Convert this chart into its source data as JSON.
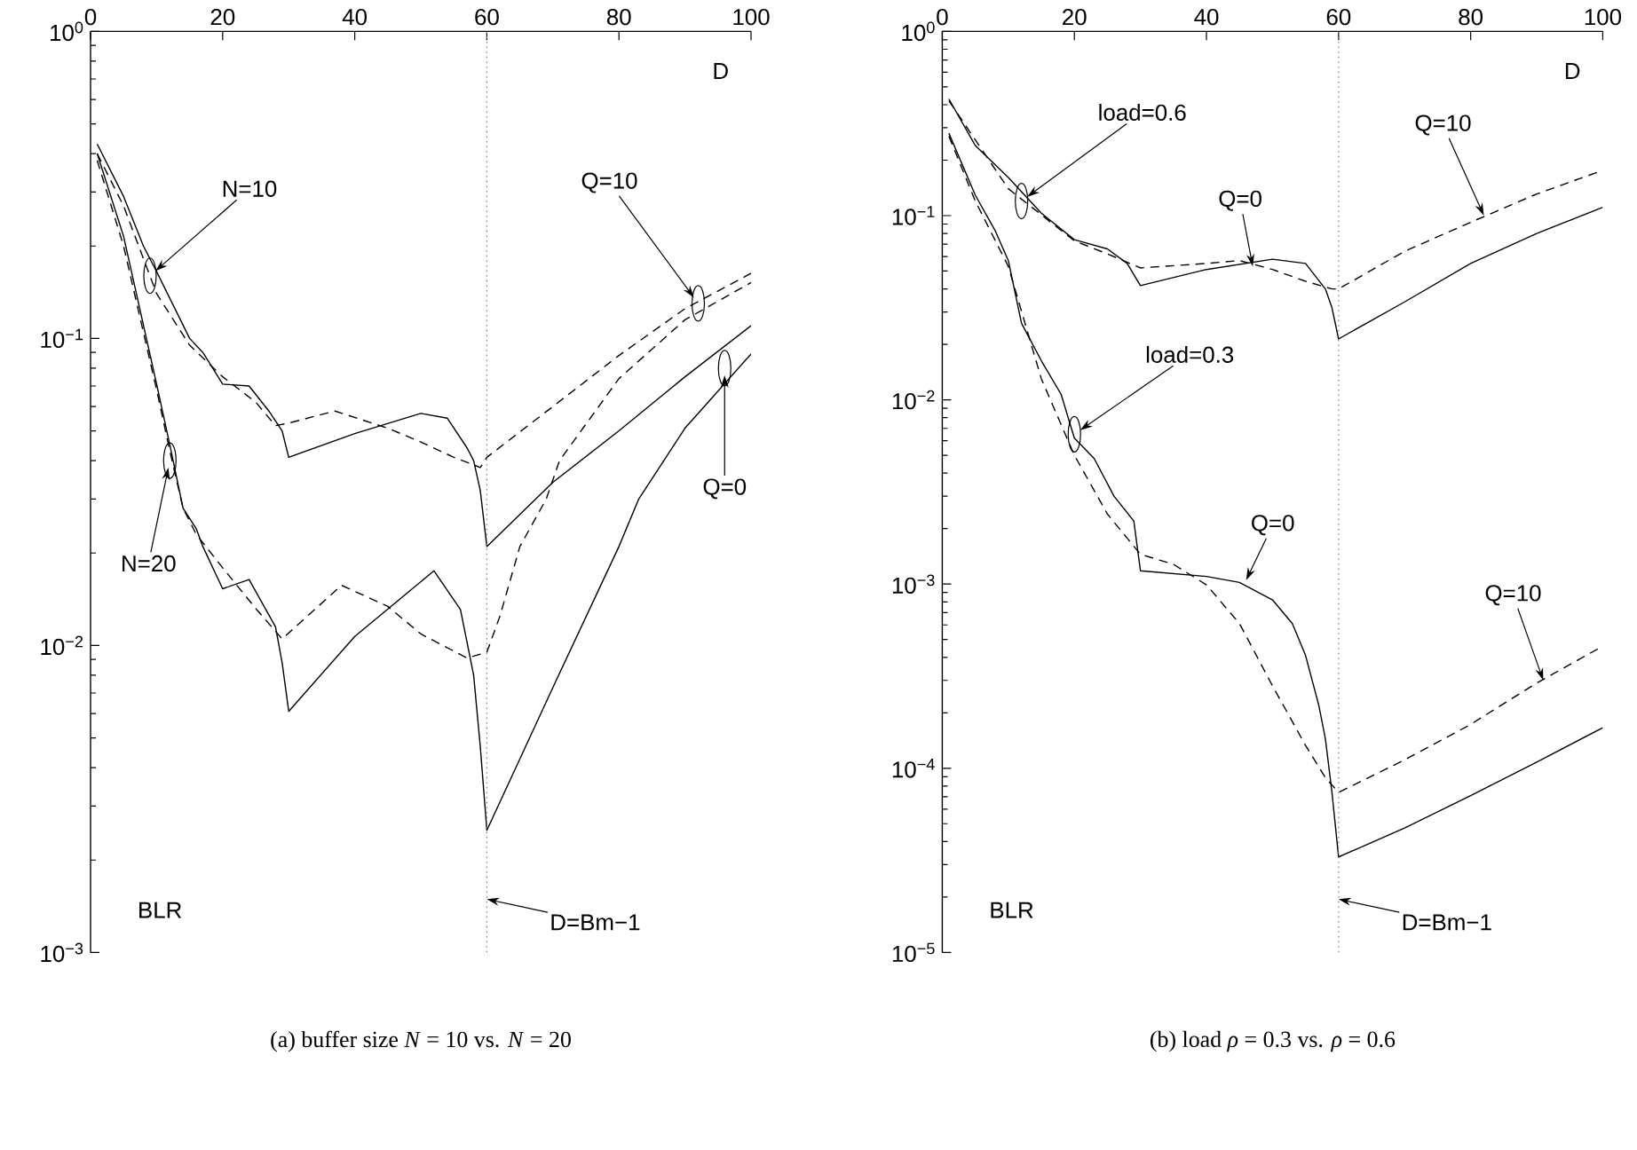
{
  "chart_data": [
    {
      "type": "line",
      "title": "(a) buffer size *N* = 10 vs. *N* = 20",
      "xlabel": "D",
      "ylabel": "BLR",
      "log": "y",
      "xlim": [
        0,
        100
      ],
      "xticks": [
        0,
        20,
        40,
        60,
        80,
        100
      ],
      "ylim": [
        0.001,
        1
      ],
      "yticks": [
        {
          "value": 1,
          "label": "10$^{0}$"
        },
        {
          "value": 0.1,
          "label": "10$^{−1}$"
        },
        {
          "value": 0.01,
          "label": "10$^{−2}$"
        },
        {
          "value": 0.001,
          "label": "10$^{−3}$"
        }
      ],
      "ref_lines": [
        {
          "axis": "x",
          "value": 60,
          "label": "D=Bm−1",
          "color": "#808080",
          "line_style": "dotted"
        }
      ],
      "annotations": [
        {
          "text": "N=10",
          "x": 9,
          "y": 0.16
        },
        {
          "text": "N=20",
          "x": 12,
          "y": 0.04
        },
        {
          "text": "Q=10",
          "x": 92,
          "y": 0.13
        },
        {
          "text": "Q=0",
          "x": 96,
          "y": 0.08
        }
      ],
      "series": [
        {
          "color": "#000000",
          "line_style": "solid",
          "x": [
            1,
            5,
            8,
            10,
            15,
            17,
            20,
            24,
            27,
            29,
            30,
            40,
            50,
            54,
            57,
            58,
            59,
            60,
            70,
            80,
            90,
            100
          ],
          "values": [
            0.43,
            0.29,
            0.2,
            0.165,
            0.1,
            0.09,
            0.071,
            0.07,
            0.058,
            0.05,
            0.041,
            0.049,
            0.057,
            0.055,
            0.044,
            0.04,
            0.032,
            0.021,
            0.034,
            0.05,
            0.075,
            0.11
          ]
        },
        {
          "color": "#000000",
          "line_style": "dashed",
          "x": [
            1,
            5,
            10,
            15,
            20,
            25,
            28,
            30,
            37,
            45,
            50,
            55,
            59,
            60,
            70,
            80,
            90,
            100
          ],
          "values": [
            0.4,
            0.27,
            0.14,
            0.095,
            0.075,
            0.062,
            0.052,
            0.053,
            0.058,
            0.051,
            0.046,
            0.041,
            0.038,
            0.041,
            0.06,
            0.088,
            0.125,
            0.163
          ]
        },
        {
          "color": "#000000",
          "line_style": "solid",
          "x": [
            1,
            5,
            10,
            12,
            14,
            16,
            17,
            20,
            24,
            28,
            29,
            30,
            40,
            52,
            56,
            58,
            59,
            60,
            70,
            80,
            83,
            90,
            100
          ],
          "values": [
            0.4,
            0.215,
            0.071,
            0.045,
            0.028,
            0.024,
            0.021,
            0.0153,
            0.0164,
            0.0115,
            0.0088,
            0.0061,
            0.0107,
            0.0175,
            0.0131,
            0.008,
            0.0047,
            0.0025,
            0.0073,
            0.021,
            0.03,
            0.051,
            0.089
          ]
        },
        {
          "color": "#000000",
          "line_style": "dashed",
          "x": [
            1,
            5,
            10,
            12,
            14,
            16,
            20,
            25,
            29,
            38,
            45,
            50,
            57,
            60,
            62,
            65,
            69,
            71,
            80,
            90,
            100
          ],
          "values": [
            0.38,
            0.2,
            0.068,
            0.043,
            0.028,
            0.023,
            0.0179,
            0.0132,
            0.0105,
            0.0157,
            0.0134,
            0.0109,
            0.0091,
            0.0095,
            0.0125,
            0.021,
            0.03,
            0.04,
            0.074,
            0.115,
            0.152
          ]
        }
      ]
    },
    {
      "type": "line",
      "title": "(b) load *ρ* = 0.3 vs. *ρ* = 0.6",
      "xlabel": "D",
      "ylabel": "BLR",
      "log": "y",
      "xlim": [
        0,
        100
      ],
      "xticks": [
        0,
        20,
        40,
        60,
        80,
        100
      ],
      "ylim": [
        1e-05,
        1
      ],
      "yticks": [
        {
          "value": 1,
          "label": "10$^{0}$"
        },
        {
          "value": 0.1,
          "label": "10$^{−1}$"
        },
        {
          "value": 0.01,
          "label": "10$^{−2}$"
        },
        {
          "value": 0.001,
          "label": "10$^{−3}$"
        },
        {
          "value": 0.0001,
          "label": "10$^{−4}$"
        },
        {
          "value": 1e-05,
          "label": "10$^{−5}$"
        }
      ],
      "ref_lines": [
        {
          "axis": "x",
          "value": 60,
          "label": "D=Bm−1",
          "color": "#808080",
          "line_style": "dotted"
        }
      ],
      "annotations": [
        {
          "text": "load=0.6",
          "x": 12,
          "y": 0.12
        },
        {
          "text": "load=0.3",
          "x": 20,
          "y": 0.0065
        },
        {
          "text": "Q=0",
          "x": 47,
          "y": 0.053
        },
        {
          "text": "Q=0",
          "x": 46,
          "y": 0.00105
        },
        {
          "text": "Q=10",
          "x": 82,
          "y": 0.1
        },
        {
          "text": "Q=10",
          "x": 91,
          "y": 0.0003
        }
      ],
      "series": [
        {
          "color": "#000000",
          "line_style": "solid",
          "x": [
            1,
            5,
            10,
            15,
            20,
            25,
            28,
            30,
            40,
            50,
            55,
            58,
            59,
            60,
            70,
            80,
            90,
            100
          ],
          "values": [
            0.43,
            0.24,
            0.161,
            0.103,
            0.074,
            0.066,
            0.055,
            0.0417,
            0.051,
            0.058,
            0.055,
            0.04,
            0.0316,
            0.0214,
            0.034,
            0.055,
            0.08,
            0.111
          ]
        },
        {
          "color": "#000000",
          "line_style": "dashed",
          "x": [
            1,
            10,
            20,
            25,
            30,
            40,
            45,
            50,
            55,
            59,
            60,
            70,
            80,
            90,
            100
          ],
          "values": [
            0.42,
            0.14,
            0.073,
            0.062,
            0.052,
            0.055,
            0.057,
            0.051,
            0.044,
            0.04,
            0.04,
            0.064,
            0.092,
            0.131,
            0.176
          ]
        },
        {
          "color": "#000000",
          "line_style": "solid",
          "x": [
            1,
            5,
            8,
            10,
            12,
            15,
            18,
            20,
            23,
            26,
            29,
            30,
            40,
            45,
            50,
            53,
            55,
            57,
            58,
            59,
            60,
            70,
            80,
            90,
            100
          ],
          "values": [
            0.28,
            0.129,
            0.083,
            0.057,
            0.026,
            0.0163,
            0.0107,
            0.0062,
            0.0048,
            0.003,
            0.0022,
            0.00118,
            0.0011,
            0.00102,
            0.00082,
            0.00061,
            0.00041,
            0.00022,
            0.000145,
            7.4e-05,
            3.3e-05,
            4.74e-05,
            7.11e-05,
            0.000108,
            0.000166
          ]
        },
        {
          "color": "#000000",
          "line_style": "dashed",
          "x": [
            1,
            5,
            10,
            15,
            20,
            25,
            30,
            35,
            40,
            45,
            50,
            55,
            58,
            60,
            70,
            80,
            90,
            100
          ],
          "values": [
            0.27,
            0.12,
            0.053,
            0.013,
            0.005,
            0.0024,
            0.00145,
            0.00128,
            0.00099,
            0.00061,
            0.00028,
            0.000133,
            8.9e-05,
            7.4e-05,
            0.000111,
            0.000173,
            0.00029,
            0.00046
          ]
        }
      ]
    }
  ]
}
